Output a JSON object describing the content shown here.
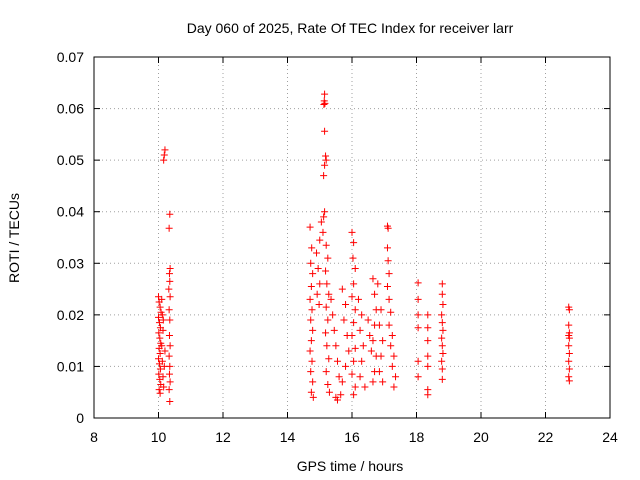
{
  "chart_data": {
    "type": "scatter",
    "title": "Day 060 of 2025, Rate Of TEC Index for receiver larr",
    "xlabel": "GPS time / hours",
    "ylabel": "ROTI / TECUs",
    "xlim": [
      8,
      24
    ],
    "ylim": [
      0,
      0.07
    ],
    "xticks": [
      8,
      10,
      12,
      14,
      16,
      18,
      20,
      22,
      24
    ],
    "xtick_labels": [
      "8",
      "10",
      "12",
      "14",
      "16",
      "18",
      "20",
      "22",
      "24"
    ],
    "yticks": [
      0,
      0.01,
      0.02,
      0.03,
      0.04,
      0.05,
      0.06,
      0.07
    ],
    "ytick_labels": [
      "0",
      "0.01",
      "0.02",
      "0.03",
      "0.04",
      "0.05",
      "0.06",
      "0.07"
    ],
    "grid": true,
    "marker": "plus",
    "color": "#ff0000",
    "series": [
      {
        "name": "ROTI",
        "points": [
          [
            10.2,
            0.052
          ],
          [
            10.18,
            0.051
          ],
          [
            10.16,
            0.05
          ],
          [
            10.0,
            0.0235
          ],
          [
            10.02,
            0.0225
          ],
          [
            10.05,
            0.0215
          ],
          [
            10.08,
            0.0205
          ],
          [
            10.0,
            0.0195
          ],
          [
            10.03,
            0.0185
          ],
          [
            10.06,
            0.0175
          ],
          [
            10.01,
            0.0165
          ],
          [
            10.04,
            0.0155
          ],
          [
            10.07,
            0.0145
          ],
          [
            10.02,
            0.0135
          ],
          [
            10.05,
            0.0125
          ],
          [
            10.0,
            0.0115
          ],
          [
            10.03,
            0.0105
          ],
          [
            10.06,
            0.0095
          ],
          [
            10.01,
            0.0085
          ],
          [
            10.04,
            0.0075
          ],
          [
            10.07,
            0.0065
          ],
          [
            10.02,
            0.0055
          ],
          [
            10.05,
            0.0048
          ],
          [
            10.1,
            0.023
          ],
          [
            10.12,
            0.02
          ],
          [
            10.14,
            0.017
          ],
          [
            10.1,
            0.014
          ],
          [
            10.12,
            0.011
          ],
          [
            10.14,
            0.008
          ],
          [
            10.16,
            0.006
          ],
          [
            10.18,
            0.01
          ],
          [
            10.2,
            0.013
          ],
          [
            10.15,
            0.019
          ],
          [
            10.35,
            0.0395
          ],
          [
            10.33,
            0.0368
          ],
          [
            10.36,
            0.029
          ],
          [
            10.34,
            0.028
          ],
          [
            10.35,
            0.0265
          ],
          [
            10.32,
            0.025
          ],
          [
            10.36,
            0.0235
          ],
          [
            10.33,
            0.021
          ],
          [
            10.35,
            0.019
          ],
          [
            10.34,
            0.016
          ],
          [
            10.36,
            0.014
          ],
          [
            10.33,
            0.012
          ],
          [
            10.35,
            0.01
          ],
          [
            10.34,
            0.0085
          ],
          [
            10.36,
            0.007
          ],
          [
            10.33,
            0.0055
          ],
          [
            10.35,
            0.0032
          ],
          [
            14.7,
            0.037
          ],
          [
            14.75,
            0.033
          ],
          [
            14.72,
            0.03
          ],
          [
            14.78,
            0.028
          ],
          [
            14.74,
            0.0255
          ],
          [
            14.7,
            0.023
          ],
          [
            14.76,
            0.021
          ],
          [
            14.72,
            0.019
          ],
          [
            14.78,
            0.017
          ],
          [
            14.74,
            0.015
          ],
          [
            14.7,
            0.013
          ],
          [
            14.76,
            0.011
          ],
          [
            14.72,
            0.009
          ],
          [
            14.78,
            0.007
          ],
          [
            14.74,
            0.005
          ],
          [
            14.8,
            0.004
          ],
          [
            14.9,
            0.032
          ],
          [
            14.95,
            0.029
          ],
          [
            15.0,
            0.026
          ],
          [
            14.92,
            0.024
          ],
          [
            14.98,
            0.022
          ],
          [
            15.05,
            0.038
          ],
          [
            15.1,
            0.036
          ],
          [
            15.15,
            0.04
          ],
          [
            15.12,
            0.039
          ],
          [
            15.0,
            0.0345
          ],
          [
            15.15,
            0.0628
          ],
          [
            15.14,
            0.0615
          ],
          [
            15.16,
            0.061
          ],
          [
            15.13,
            0.0608
          ],
          [
            15.15,
            0.0556
          ],
          [
            15.2,
            0.05
          ],
          [
            15.15,
            0.049
          ],
          [
            15.12,
            0.047
          ],
          [
            15.18,
            0.0508
          ],
          [
            15.2,
            0.0335
          ],
          [
            15.25,
            0.031
          ],
          [
            15.18,
            0.0285
          ],
          [
            15.22,
            0.026
          ],
          [
            15.28,
            0.024
          ],
          [
            15.2,
            0.0215
          ],
          [
            15.25,
            0.019
          ],
          [
            15.18,
            0.0165
          ],
          [
            15.22,
            0.014
          ],
          [
            15.28,
            0.0115
          ],
          [
            15.2,
            0.009
          ],
          [
            15.25,
            0.0065
          ],
          [
            15.3,
            0.005
          ],
          [
            15.35,
            0.023
          ],
          [
            15.4,
            0.02
          ],
          [
            15.45,
            0.017
          ],
          [
            15.5,
            0.014
          ],
          [
            15.55,
            0.011
          ],
          [
            15.6,
            0.008
          ],
          [
            15.5,
            0.004
          ],
          [
            15.55,
            0.0035
          ],
          [
            15.7,
            0.025
          ],
          [
            15.8,
            0.022
          ],
          [
            15.75,
            0.019
          ],
          [
            15.85,
            0.016
          ],
          [
            15.9,
            0.013
          ],
          [
            15.8,
            0.01
          ],
          [
            15.7,
            0.007
          ],
          [
            15.65,
            0.0045
          ],
          [
            16.0,
            0.036
          ],
          [
            16.05,
            0.034
          ],
          [
            16.03,
            0.031
          ],
          [
            16.1,
            0.029
          ],
          [
            16.05,
            0.026
          ],
          [
            16.0,
            0.0235
          ],
          [
            16.1,
            0.021
          ],
          [
            16.05,
            0.0185
          ],
          [
            16.0,
            0.016
          ],
          [
            16.1,
            0.0135
          ],
          [
            16.05,
            0.011
          ],
          [
            16.0,
            0.0085
          ],
          [
            16.1,
            0.006
          ],
          [
            16.05,
            0.0045
          ],
          [
            16.2,
            0.023
          ],
          [
            16.3,
            0.02
          ],
          [
            16.25,
            0.017
          ],
          [
            16.35,
            0.014
          ],
          [
            16.3,
            0.011
          ],
          [
            16.25,
            0.008
          ],
          [
            16.4,
            0.006
          ],
          [
            16.5,
            0.019
          ],
          [
            16.55,
            0.016
          ],
          [
            16.6,
            0.013
          ],
          [
            16.65,
            0.027
          ],
          [
            16.7,
            0.024
          ],
          [
            16.75,
            0.021
          ],
          [
            16.7,
            0.018
          ],
          [
            16.65,
            0.015
          ],
          [
            16.75,
            0.012
          ],
          [
            16.7,
            0.009
          ],
          [
            16.65,
            0.007
          ],
          [
            16.8,
            0.026
          ],
          [
            16.9,
            0.021
          ],
          [
            16.85,
            0.018
          ],
          [
            16.95,
            0.015
          ],
          [
            16.9,
            0.012
          ],
          [
            16.85,
            0.009
          ],
          [
            16.95,
            0.007
          ],
          [
            17.1,
            0.0372
          ],
          [
            17.12,
            0.0368
          ],
          [
            17.1,
            0.033
          ],
          [
            17.12,
            0.0305
          ],
          [
            17.15,
            0.028
          ],
          [
            17.1,
            0.0255
          ],
          [
            17.15,
            0.023
          ],
          [
            17.2,
            0.0205
          ],
          [
            17.15,
            0.018
          ],
          [
            17.25,
            0.016
          ],
          [
            17.2,
            0.014
          ],
          [
            17.3,
            0.012
          ],
          [
            17.25,
            0.01
          ],
          [
            17.35,
            0.008
          ],
          [
            17.3,
            0.006
          ],
          [
            18.05,
            0.0262
          ],
          [
            18.05,
            0.023
          ],
          [
            18.05,
            0.02
          ],
          [
            18.05,
            0.0175
          ],
          [
            18.05,
            0.011
          ],
          [
            18.05,
            0.008
          ],
          [
            18.35,
            0.02
          ],
          [
            18.35,
            0.0175
          ],
          [
            18.35,
            0.015
          ],
          [
            18.35,
            0.012
          ],
          [
            18.35,
            0.01
          ],
          [
            18.35,
            0.0055
          ],
          [
            18.35,
            0.0045
          ],
          [
            18.8,
            0.026
          ],
          [
            18.8,
            0.024
          ],
          [
            18.82,
            0.022
          ],
          [
            18.78,
            0.02
          ],
          [
            18.8,
            0.0185
          ],
          [
            18.82,
            0.017
          ],
          [
            18.78,
            0.0155
          ],
          [
            18.8,
            0.014
          ],
          [
            18.82,
            0.0125
          ],
          [
            18.78,
            0.011
          ],
          [
            18.8,
            0.0095
          ],
          [
            18.8,
            0.0075
          ],
          [
            22.72,
            0.0215
          ],
          [
            22.74,
            0.021
          ],
          [
            22.72,
            0.018
          ],
          [
            22.74,
            0.0165
          ],
          [
            22.72,
            0.016
          ],
          [
            22.74,
            0.0155
          ],
          [
            22.72,
            0.014
          ],
          [
            22.74,
            0.0125
          ],
          [
            22.72,
            0.011
          ],
          [
            22.74,
            0.0095
          ],
          [
            22.72,
            0.008
          ],
          [
            22.74,
            0.0072
          ]
        ]
      }
    ]
  }
}
